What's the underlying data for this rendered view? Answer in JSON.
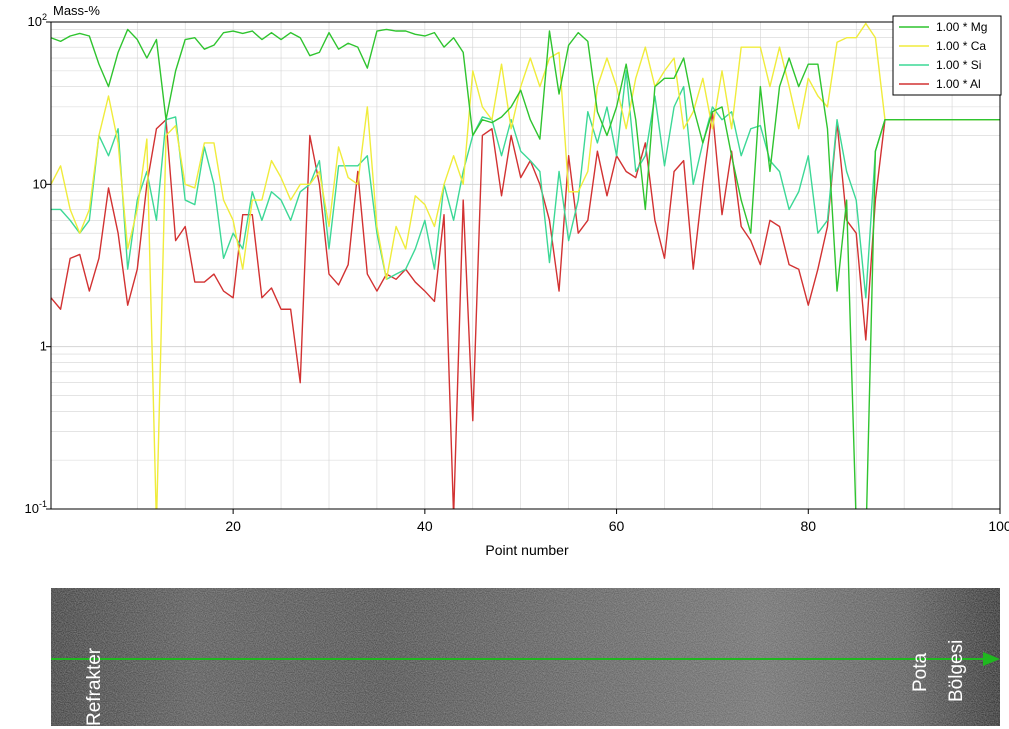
{
  "chart_data": {
    "type": "line",
    "ylabel": "Mass-%",
    "xlabel": "Point number",
    "xlim": [
      1,
      100
    ],
    "ylim": [
      0.1,
      100
    ],
    "yscale": "log",
    "grid": true,
    "legend_position": "top-right",
    "x_ticks": [
      "20",
      "40",
      "60",
      "80",
      "100"
    ],
    "y_ticks": [
      {
        "base": "10",
        "exp": "2"
      },
      {
        "base": "10",
        "exp": ""
      },
      {
        "base": "1",
        "exp": ""
      },
      {
        "base": "10",
        "exp": "-1"
      }
    ],
    "series": [
      {
        "name": "1.00 * Mg",
        "color": "#2fc42f",
        "values": [
          80,
          76,
          82,
          85,
          82,
          55,
          40,
          65,
          90,
          78,
          60,
          78,
          25,
          50,
          78,
          80,
          68,
          72,
          86,
          88,
          85,
          88,
          78,
          86,
          78,
          86,
          80,
          62,
          65,
          86,
          68,
          74,
          70,
          52,
          88,
          90,
          88,
          88,
          84,
          82,
          86,
          70,
          80,
          65,
          20,
          25,
          24,
          26,
          30,
          38,
          25,
          19,
          88,
          36,
          72,
          86,
          76,
          28,
          20,
          30,
          55,
          25,
          7,
          40,
          45,
          45,
          60,
          30,
          18,
          28,
          30,
          15,
          8,
          5,
          40,
          12,
          40,
          60,
          40,
          55,
          55,
          22,
          2.2,
          8,
          0.08,
          0.06,
          16,
          25,
          25,
          25,
          25,
          25,
          25,
          25,
          25,
          25,
          25,
          25,
          25,
          25
        ]
      },
      {
        "name": "1.00 * Ca",
        "color": "#f0ec3c",
        "values": [
          10,
          13,
          7,
          5,
          7,
          20,
          35,
          18,
          4,
          7,
          19,
          0.08,
          20,
          23,
          10,
          9.5,
          18,
          18,
          8,
          6,
          3,
          8,
          8,
          14,
          11,
          8,
          10,
          10,
          12,
          5.5,
          17,
          11,
          10,
          30,
          5.5,
          2.6,
          5.5,
          4,
          8.5,
          7.5,
          5.5,
          10,
          15,
          10,
          50,
          30,
          25,
          55,
          22,
          40,
          60,
          40,
          60,
          65,
          9,
          9,
          12,
          40,
          60,
          40,
          22,
          45,
          70,
          40,
          50,
          60,
          22,
          28,
          45,
          22,
          50,
          22,
          70,
          70,
          70,
          40,
          70,
          40,
          22,
          45,
          35,
          30,
          75,
          80,
          80,
          98,
          80,
          25,
          25,
          25,
          25,
          25,
          25,
          25,
          25,
          25,
          25,
          25,
          25,
          25
        ]
      },
      {
        "name": "1.00 * Si",
        "color": "#3cd896",
        "values": [
          7,
          7,
          6,
          5,
          6,
          20,
          15,
          22,
          3,
          8,
          12,
          6,
          25,
          26,
          8,
          7.5,
          17,
          10,
          3.5,
          5,
          4,
          9,
          6,
          9,
          8,
          6,
          9,
          10,
          14,
          4,
          13,
          13,
          13,
          15,
          5,
          2.6,
          2.8,
          3,
          4,
          6,
          3,
          10,
          6,
          12,
          20,
          26,
          25,
          15,
          25,
          16,
          14,
          12,
          3.3,
          12,
          4.5,
          8,
          28,
          18,
          30,
          15,
          50,
          12,
          15,
          35,
          13,
          30,
          40,
          10,
          18,
          30,
          25,
          28,
          15,
          22,
          23,
          14,
          12,
          7,
          9,
          15,
          5,
          6,
          25,
          12,
          8,
          2,
          16,
          25,
          25,
          25,
          25,
          25,
          25,
          25,
          25,
          25,
          25,
          25,
          25,
          25
        ]
      },
      {
        "name": "1.00 * Al",
        "color": "#d23232",
        "values": [
          2,
          1.7,
          3.5,
          3.7,
          2.2,
          3.5,
          9.5,
          5,
          1.8,
          3,
          10,
          22,
          25,
          4.5,
          5.5,
          2.5,
          2.5,
          2.8,
          2.2,
          2,
          6.5,
          6.5,
          2,
          2.3,
          1.7,
          1.7,
          0.6,
          20,
          10,
          2.8,
          2.4,
          3.2,
          12,
          2.8,
          2.2,
          2.8,
          2.6,
          3,
          2.5,
          2.2,
          1.9,
          6.5,
          0.09,
          8,
          0.35,
          20,
          22,
          8.5,
          20,
          11,
          14,
          10,
          6,
          2.2,
          15,
          5,
          6,
          16,
          8.5,
          15,
          12,
          11,
          18,
          6,
          3.5,
          12,
          14,
          3,
          10,
          28,
          6.5,
          16,
          5.5,
          4.5,
          3.2,
          6,
          5.5,
          3.2,
          3,
          1.8,
          3,
          5.5,
          24,
          6,
          5,
          1.1,
          8,
          25,
          25,
          25,
          25,
          25,
          25,
          25,
          25,
          25,
          25,
          25,
          25,
          25
        ]
      }
    ]
  },
  "image_labels": {
    "left": "Refrakter",
    "right_line1": "Pota",
    "right_line2": "Bölgesi"
  },
  "colors": {
    "grid": "#d4d4d4",
    "scan_line": "#1fb81f",
    "micrograph_bg": "#4a4a4a"
  }
}
